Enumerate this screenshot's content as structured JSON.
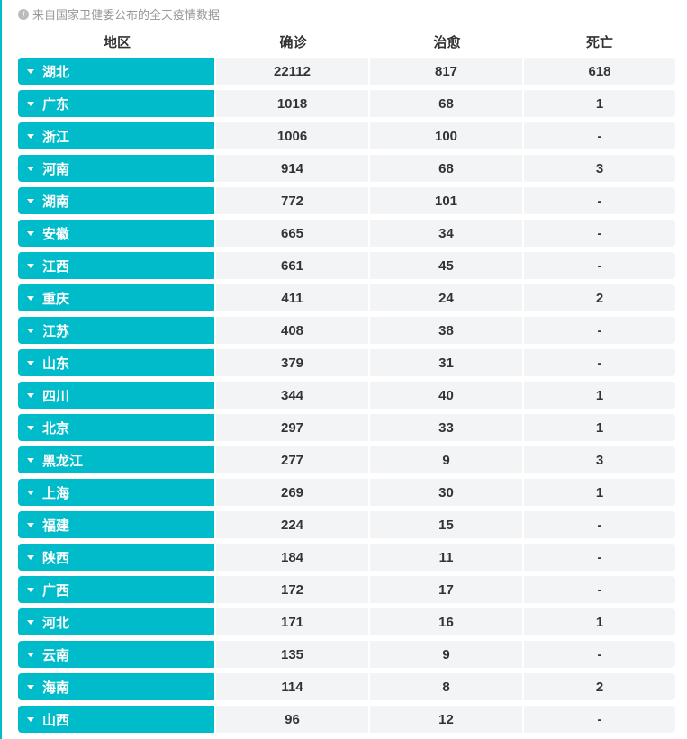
{
  "note": "来自国家卫健委公布的全天疫情数据",
  "columns": [
    "地区",
    "确诊",
    "治愈",
    "死亡"
  ],
  "rows": [
    [
      "湖北",
      "22112",
      "817",
      "618"
    ],
    [
      "广东",
      "1018",
      "68",
      "1"
    ],
    [
      "浙江",
      "1006",
      "100",
      "-"
    ],
    [
      "河南",
      "914",
      "68",
      "3"
    ],
    [
      "湖南",
      "772",
      "101",
      "-"
    ],
    [
      "安徽",
      "665",
      "34",
      "-"
    ],
    [
      "江西",
      "661",
      "45",
      "-"
    ],
    [
      "重庆",
      "411",
      "24",
      "2"
    ],
    [
      "江苏",
      "408",
      "38",
      "-"
    ],
    [
      "山东",
      "379",
      "31",
      "-"
    ],
    [
      "四川",
      "344",
      "40",
      "1"
    ],
    [
      "北京",
      "297",
      "33",
      "1"
    ],
    [
      "黑龙江",
      "277",
      "9",
      "3"
    ],
    [
      "上海",
      "269",
      "30",
      "1"
    ],
    [
      "福建",
      "224",
      "15",
      "-"
    ],
    [
      "陕西",
      "184",
      "11",
      "-"
    ],
    [
      "广西",
      "172",
      "17",
      "-"
    ],
    [
      "河北",
      "171",
      "16",
      "1"
    ],
    [
      "云南",
      "135",
      "9",
      "-"
    ],
    [
      "海南",
      "114",
      "8",
      "2"
    ],
    [
      "山西",
      "96",
      "12",
      "-"
    ]
  ],
  "colors": {
    "accent": "#00bbc9",
    "cell_bg": "#f3f4f6"
  }
}
